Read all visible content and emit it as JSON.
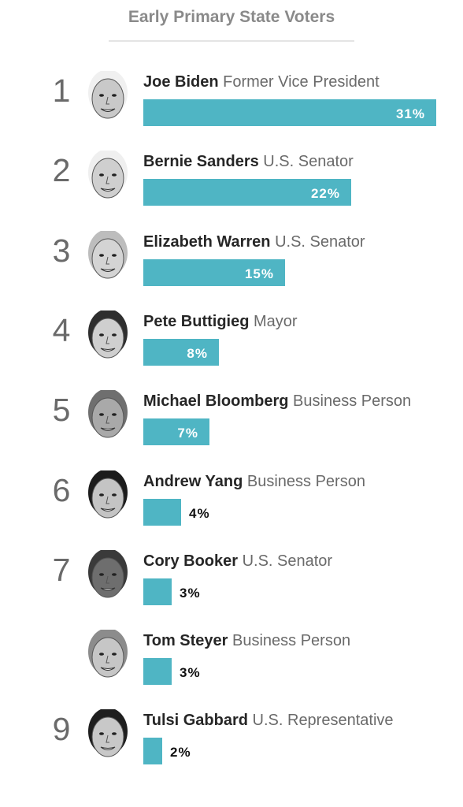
{
  "title": "Early Primary State Voters",
  "colors": {
    "bar": "#4fb5c4",
    "title": "#8a8a8a",
    "role": "#6a6a6a"
  },
  "chart_data": {
    "type": "bar",
    "title": "Early Primary State Voters",
    "orientation": "horizontal",
    "unit": "%",
    "xlim": [
      0,
      31
    ],
    "categories": [
      "Joe Biden",
      "Bernie Sanders",
      "Elizabeth Warren",
      "Pete Buttigieg",
      "Michael Bloomberg",
      "Andrew Yang",
      "Cory Booker",
      "Tom Steyer",
      "Tulsi Gabbard"
    ],
    "values": [
      31,
      22,
      15,
      8,
      7,
      4,
      3,
      3,
      2
    ],
    "rows": [
      {
        "rank": "1",
        "name": "Joe Biden",
        "role": "Former Vice President",
        "value": 31,
        "label": "31%",
        "avatar_icon": "biden-portrait",
        "tone": "#c9c9c9",
        "hair": "#f0f0f0"
      },
      {
        "rank": "2",
        "name": "Bernie Sanders",
        "role": "U.S. Senator",
        "value": 22,
        "label": "22%",
        "avatar_icon": "sanders-portrait",
        "tone": "#cfcfcf",
        "hair": "#efefef"
      },
      {
        "rank": "3",
        "name": "Elizabeth Warren",
        "role": "U.S. Senator",
        "value": 15,
        "label": "15%",
        "avatar_icon": "warren-portrait",
        "tone": "#d4d4d4",
        "hair": "#bdbdbd"
      },
      {
        "rank": "4",
        "name": "Pete Buttigieg",
        "role": "Mayor",
        "value": 8,
        "label": "8%",
        "avatar_icon": "buttigieg-portrait",
        "tone": "#cfcfcf",
        "hair": "#2e2e2e"
      },
      {
        "rank": "5",
        "name": "Michael Bloomberg",
        "role": "Business Person",
        "value": 7,
        "label": "7%",
        "avatar_icon": "bloomberg-portrait",
        "tone": "#a9a9a9",
        "hair": "#6f6f6f"
      },
      {
        "rank": "6",
        "name": "Andrew Yang",
        "role": "Business Person",
        "value": 4,
        "label": "4%",
        "avatar_icon": "yang-portrait",
        "tone": "#c4c4c4",
        "hair": "#1c1c1c"
      },
      {
        "rank": "7",
        "name": "Cory Booker",
        "role": "U.S. Senator",
        "value": 3,
        "label": "3%",
        "avatar_icon": "booker-portrait",
        "tone": "#6e6e6e",
        "hair": "#3a3a3a"
      },
      {
        "rank": "",
        "name": "Tom Steyer",
        "role": "Business Person",
        "value": 3,
        "label": "3%",
        "avatar_icon": "steyer-portrait",
        "tone": "#c6c6c6",
        "hair": "#8c8c8c"
      },
      {
        "rank": "9",
        "name": "Tulsi Gabbard",
        "role": "U.S. Representative",
        "value": 2,
        "label": "2%",
        "avatar_icon": "gabbard-portrait",
        "tone": "#c8c8c8",
        "hair": "#1e1e1e"
      }
    ]
  }
}
